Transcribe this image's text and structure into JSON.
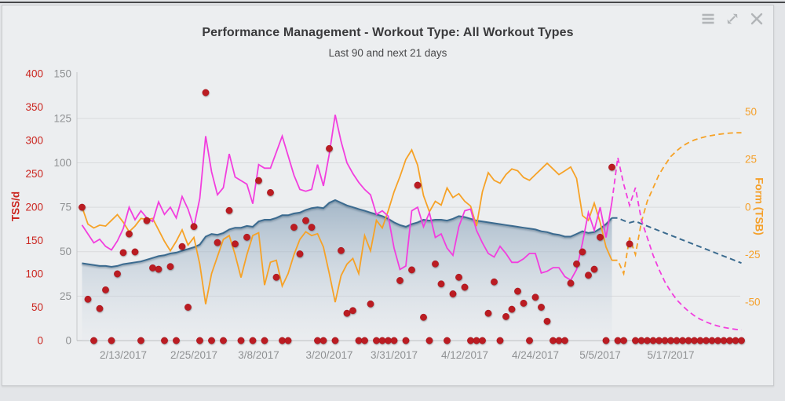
{
  "page": {
    "background": "#e3e5e8",
    "panel_background": "#eceef0",
    "top_line_color": "#47484b"
  },
  "header": {
    "title": "Performance Management - Workout Type: All Workout Types",
    "subtitle": "Last 90 and next 21 days"
  },
  "toolbar": {
    "icons": [
      "menu",
      "expand",
      "close"
    ]
  },
  "chart_data": {
    "type": "line",
    "title": "Performance Management - Workout Type: All Workout Types",
    "subtitle": "Last 90 and next 21 days",
    "grid": true,
    "legend": "none",
    "x_axis": {
      "tick_labels": [
        "2/13/2017",
        "2/25/2017",
        "3/8/2017",
        "3/20/2017",
        "3/31/2017",
        "4/12/2017",
        "4/24/2017",
        "5/5/2017",
        "5/17/2017"
      ],
      "tick_day_indices": [
        7,
        19,
        30,
        42,
        53,
        65,
        77,
        88,
        100
      ],
      "total_days": 112,
      "today_day_index": 90
    },
    "axes": {
      "tss_left": {
        "label": "TSS/d",
        "color": "#cb2620",
        "ticks": [
          0,
          50,
          100,
          150,
          200,
          250,
          300,
          350,
          400
        ],
        "range": [
          0,
          400
        ]
      },
      "ctl_left": {
        "color": "#8f9193",
        "ticks": [
          0,
          25,
          50,
          75,
          100,
          125,
          150
        ],
        "range": [
          0,
          150
        ],
        "grid_values": [
          25,
          50,
          75,
          100,
          125
        ]
      },
      "tsb_right": {
        "label": "Form (TSB)",
        "color": "#f5a02a",
        "ticks": [
          50,
          25,
          0,
          -25,
          -50
        ],
        "visible_range": [
          -50,
          50
        ]
      }
    },
    "series": [
      {
        "id": "fitness_ctl",
        "type": "area",
        "axis": "ctl_left",
        "line_color": "#3b6b8f",
        "fill_top": "rgba(116,146,173,0.60)",
        "fill_bottom": "rgba(227,232,238,0.22)",
        "solid_until": 90,
        "values": [
          43.5,
          43,
          42.5,
          42,
          42,
          41.5,
          42,
          43,
          43.5,
          44,
          44.5,
          45.5,
          46.5,
          47.5,
          48,
          49,
          49.5,
          50.5,
          51.5,
          52.5,
          54,
          58.5,
          60,
          59.5,
          60.5,
          62.5,
          63.5,
          63.5,
          64.5,
          64,
          67,
          68,
          68,
          69,
          70.5,
          70.5,
          71.5,
          72,
          73.5,
          74.5,
          75,
          74.5,
          77.5,
          79,
          77.5,
          76,
          75,
          74,
          73,
          72,
          71,
          70,
          68.5,
          66.5,
          65,
          64,
          65.5,
          66.5,
          68,
          67.5,
          68,
          68,
          67.5,
          68.5,
          70,
          69.5,
          68.5,
          67.5,
          67,
          66.5,
          66,
          65.5,
          65,
          64.5,
          64,
          63.5,
          63,
          62.5,
          61.5,
          61,
          60,
          59.5,
          58.5,
          58.5,
          60,
          61.5,
          60.5,
          61,
          63,
          65.5,
          69,
          69,
          67.5,
          66.3,
          67.2,
          65.7,
          64.4,
          63.1,
          61.8,
          60.5,
          59.2,
          57.9,
          56.6,
          55.3,
          54,
          52.7,
          51.4,
          50.1,
          48.8,
          47.5,
          46.2,
          44.9,
          43.6
        ]
      },
      {
        "id": "fatigue_atl",
        "type": "line",
        "axis": "ctl_left",
        "line_color": "#f23ede",
        "solid_until": 90,
        "values": [
          65,
          60,
          55,
          57,
          53,
          51,
          56,
          63,
          75,
          68,
          73,
          69,
          67,
          78,
          71,
          75,
          69,
          81,
          74,
          64,
          80,
          115,
          95,
          82,
          86,
          105,
          92,
          90,
          88,
          77,
          99,
          97,
          97,
          106,
          115,
          104,
          93,
          85,
          84,
          85,
          99,
          87,
          105,
          127,
          112,
          100,
          94,
          89,
          85,
          82,
          71,
          73,
          70,
          52,
          40,
          42,
          73,
          75,
          64,
          72,
          58,
          60,
          52,
          48,
          64,
          73,
          74,
          62,
          55,
          49,
          47,
          53,
          49,
          44,
          44,
          46,
          49,
          49,
          38,
          39,
          41,
          41,
          36,
          34,
          40,
          55,
          72,
          62,
          75,
          58,
          78,
          103,
          88,
          76,
          86,
          68,
          58,
          48,
          40,
          33,
          27.5,
          23,
          19.5,
          16.5,
          14,
          12,
          10.5,
          9.2,
          8.2,
          7.4,
          6.8,
          6.3,
          6
        ]
      },
      {
        "id": "form_tsb",
        "type": "line",
        "axis": "tsb_right",
        "line_color": "#f6a227",
        "solid_until": 90,
        "values": [
          0,
          -9,
          -11,
          -9.5,
          -10,
          -7,
          -4,
          -8,
          -13,
          -10,
          -6,
          -6.5,
          -6,
          -12,
          -18,
          -23,
          -18,
          -12,
          -20,
          -16,
          -30,
          -51,
          -35,
          -26,
          -17,
          -15,
          -25,
          -37,
          -25,
          -15,
          -13.5,
          -41,
          -29,
          -28,
          -41.5,
          -35,
          -25,
          -17,
          -13,
          -15,
          -14,
          -21,
          -35,
          -50,
          -36,
          -30,
          -27,
          -35,
          -15,
          -23,
          -7,
          -11,
          -2,
          8,
          16,
          25,
          30,
          22,
          6,
          -2.5,
          3,
          1,
          10,
          5,
          7,
          3,
          0.5,
          -10,
          8,
          18,
          14,
          12.5,
          17,
          20,
          19,
          15.5,
          14,
          17,
          20,
          23,
          20,
          17,
          19,
          21,
          15,
          -4.5,
          -7,
          2,
          -8,
          -21,
          -28,
          -28,
          -35,
          -16,
          -25,
          -8,
          3,
          10,
          17,
          22,
          26.5,
          29.5,
          32,
          33.8,
          35.2,
          36.2,
          37,
          37.6,
          38.1,
          38.5,
          38.8,
          39,
          39
        ]
      },
      {
        "id": "daily_tss",
        "type": "scatter",
        "axis": "tss_left",
        "color": "#bb1a22",
        "values": [
          200,
          62,
          0,
          48,
          76,
          0,
          100,
          132,
          160,
          133,
          0,
          180,
          109,
          107,
          0,
          111,
          0,
          141,
          50,
          171,
          0,
          372,
          0,
          147,
          0,
          195,
          145,
          0,
          155,
          0,
          240,
          0,
          222,
          95,
          0,
          0,
          170,
          130,
          180,
          170,
          0,
          0,
          288,
          0,
          135,
          41,
          45,
          0,
          0,
          55,
          0,
          0,
          0,
          0,
          90,
          0,
          106,
          233,
          35,
          0,
          115,
          85,
          0,
          70,
          95,
          80,
          0,
          0,
          0,
          41,
          88,
          0,
          36,
          47,
          74,
          56,
          0,
          65,
          50,
          29,
          0,
          0,
          0,
          86,
          115,
          133,
          98,
          107,
          155,
          0,
          260,
          0,
          0,
          145,
          0,
          0,
          0,
          0,
          0,
          0,
          0,
          0,
          0,
          0,
          0,
          0,
          0,
          0,
          0,
          0,
          0,
          0,
          0
        ]
      }
    ]
  }
}
